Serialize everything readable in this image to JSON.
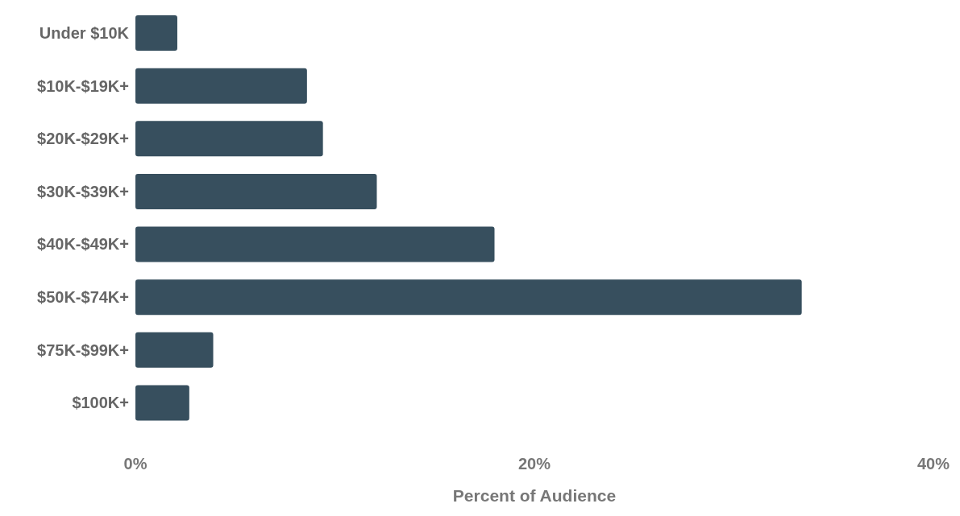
{
  "chart_data": {
    "type": "bar",
    "orientation": "horizontal",
    "xlabel": "Percent of Audience",
    "categories": [
      "Under $10K",
      "$10K-$19K+",
      "$20K-$29K+",
      "$30K-$39K+",
      "$40K-$49K+",
      "$50K-$74K+",
      "$75K-$99K+",
      "$100K+"
    ],
    "values": [
      2.1,
      8.6,
      9.4,
      12.1,
      18.0,
      33.4,
      3.9,
      2.7
    ],
    "color": "#374f5e",
    "xlim": [
      0,
      40
    ],
    "xticks": [
      {
        "value": 0,
        "label": "0%"
      },
      {
        "value": 20,
        "label": "20%"
      },
      {
        "value": 40,
        "label": "40%"
      }
    ],
    "grid": false
  }
}
